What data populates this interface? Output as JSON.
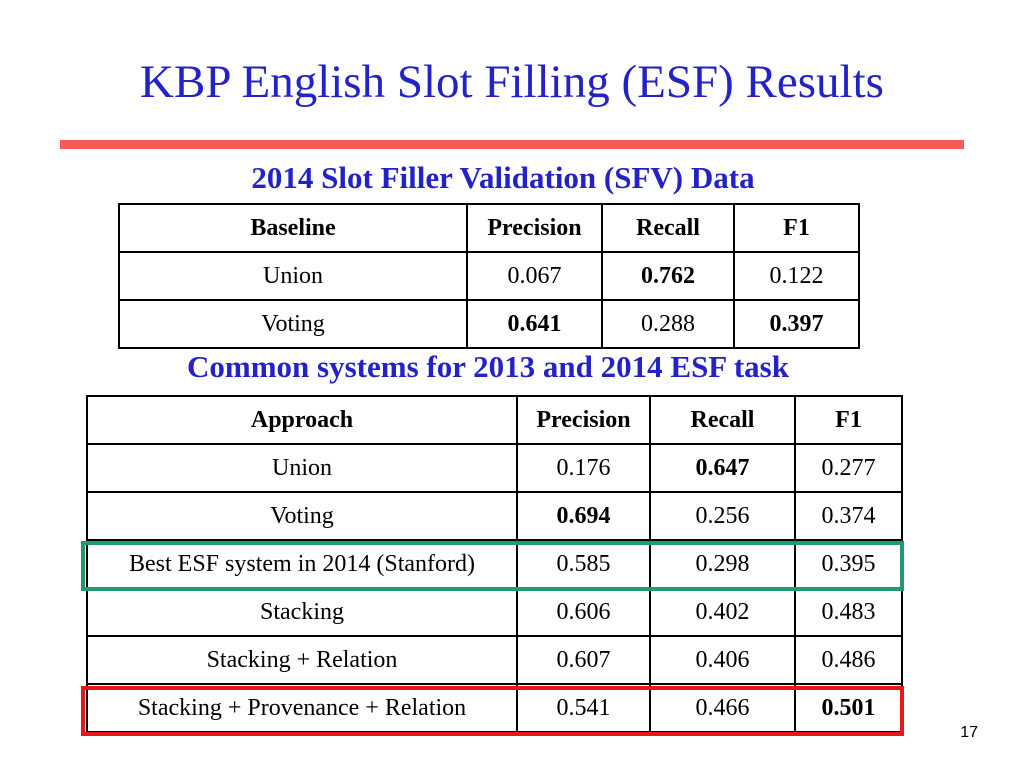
{
  "slide": {
    "title": "KBP English Slot Filling (ESF) Results",
    "page_number": "17",
    "accent_color": "#2222c8",
    "rule_color": "#f45a5a"
  },
  "sfv_table": {
    "caption": "2014 Slot Filler Validation (SFV) Data",
    "headers": [
      "Baseline",
      "Precision",
      "Recall",
      "F1"
    ],
    "rows": [
      {
        "name": "Union",
        "precision": "0.067",
        "recall": "0.762",
        "f1": "0.122",
        "bold": [
          "recall"
        ]
      },
      {
        "name": "Voting",
        "precision": "0.641",
        "recall": "0.288",
        "f1": "0.397",
        "bold": [
          "precision",
          "f1"
        ]
      }
    ]
  },
  "esf_table": {
    "caption": "Common systems for 2013 and 2014 ESF task",
    "headers": [
      "Approach",
      "Precision",
      "Recall",
      "F1"
    ],
    "rows": [
      {
        "name": "Union",
        "precision": "0.176",
        "recall": "0.647",
        "f1": "0.277",
        "bold": [
          "recall"
        ]
      },
      {
        "name": "Voting",
        "precision": "0.694",
        "recall": "0.256",
        "f1": "0.374",
        "bold": [
          "precision"
        ]
      },
      {
        "name": "Best ESF system in 2014 (Stanford)",
        "precision": "0.585",
        "recall": "0.298",
        "f1": "0.395",
        "bold": [],
        "highlight": "#1f9c6e"
      },
      {
        "name": "Stacking",
        "precision": "0.606",
        "recall": "0.402",
        "f1": "0.483",
        "bold": []
      },
      {
        "name": "Stacking + Relation",
        "precision": "0.607",
        "recall": "0.406",
        "f1": "0.486",
        "bold": []
      },
      {
        "name": "Stacking + Provenance + Relation",
        "precision": "0.541",
        "recall": "0.466",
        "f1": "0.501",
        "bold": [
          "f1"
        ],
        "highlight": "#e81818"
      }
    ]
  }
}
